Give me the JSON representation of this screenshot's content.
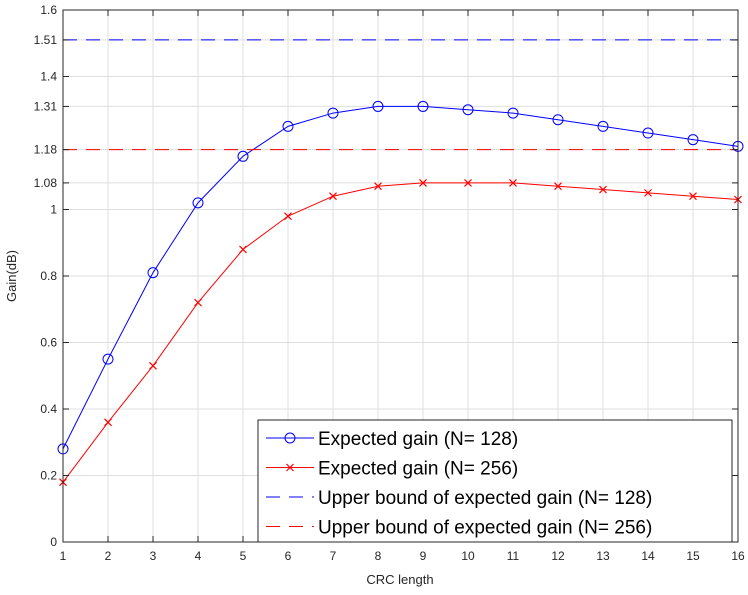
{
  "chart_data": {
    "type": "line",
    "xlabel": "CRC length",
    "ylabel": "Gain(dB)",
    "xlim": [
      1,
      16
    ],
    "ylim": [
      0,
      1.6
    ],
    "x_ticks": [
      1,
      2,
      3,
      4,
      5,
      6,
      7,
      8,
      9,
      10,
      11,
      12,
      13,
      14,
      15,
      16
    ],
    "y_ticks": [
      "0",
      "0.2",
      "0.4",
      "0.6",
      "0.8",
      "1",
      "1.08",
      "1.18",
      "1.31",
      "1.4",
      "1.51",
      "1.6"
    ],
    "grid": true,
    "legend_position": "bottom-right",
    "x": [
      1,
      2,
      3,
      4,
      5,
      6,
      7,
      8,
      9,
      10,
      11,
      12,
      13,
      14,
      15,
      16
    ],
    "series": [
      {
        "name": "Expected gain (N= 128)",
        "color": "#0000ff",
        "marker": "circle",
        "linestyle": "solid",
        "values": [
          0.28,
          0.55,
          0.81,
          1.02,
          1.16,
          1.25,
          1.29,
          1.31,
          1.31,
          1.3,
          1.29,
          1.27,
          1.25,
          1.23,
          1.21,
          1.19
        ]
      },
      {
        "name": "Expected gain (N= 256)",
        "color": "#ff0000",
        "marker": "x",
        "linestyle": "solid",
        "values": [
          0.18,
          0.36,
          0.53,
          0.72,
          0.88,
          0.98,
          1.04,
          1.07,
          1.08,
          1.08,
          1.08,
          1.07,
          1.06,
          1.05,
          1.04,
          1.03
        ]
      },
      {
        "name": "Upper bound of expected gain (N= 128)",
        "color": "#0000ff",
        "marker": "none",
        "linestyle": "dashed",
        "values": [
          1.51,
          1.51,
          1.51,
          1.51,
          1.51,
          1.51,
          1.51,
          1.51,
          1.51,
          1.51,
          1.51,
          1.51,
          1.51,
          1.51,
          1.51,
          1.51
        ]
      },
      {
        "name": "Upper bound of expected gain (N= 256)",
        "color": "#ff0000",
        "marker": "none",
        "linestyle": "dashed",
        "values": [
          1.18,
          1.18,
          1.18,
          1.18,
          1.18,
          1.18,
          1.18,
          1.18,
          1.18,
          1.18,
          1.18,
          1.18,
          1.18,
          1.18,
          1.18,
          1.18
        ]
      }
    ]
  }
}
